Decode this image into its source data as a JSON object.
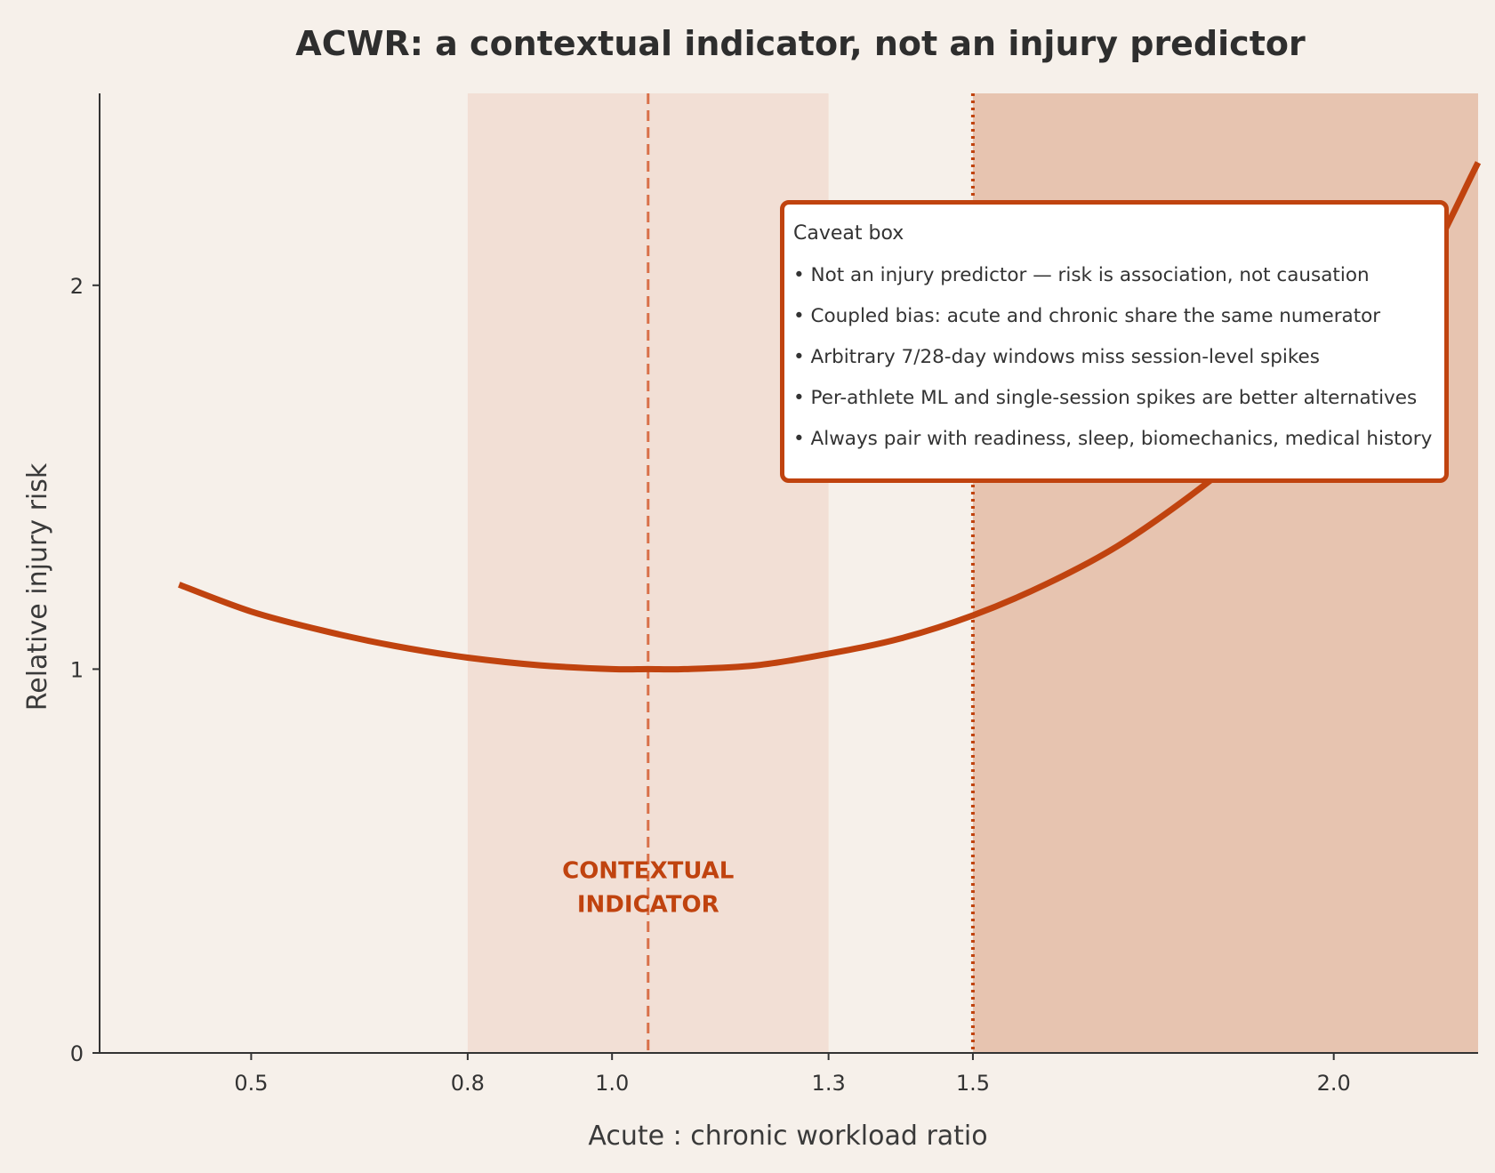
{
  "chart_data": {
    "type": "line",
    "title": "ACWR: a contextual indicator, not an injury predictor",
    "xlabel": "Acute : chronic workload ratio",
    "ylabel": "Relative injury risk",
    "xlim": [
      0.29,
      2.2
    ],
    "ylim": [
      0,
      2.5
    ],
    "xticks": [
      0.5,
      0.8,
      1.0,
      1.3,
      1.5,
      2.0
    ],
    "xtick_labels": [
      "0.5",
      "0.8",
      "1.0",
      "1.3",
      "1.5",
      "2.0"
    ],
    "yticks": [
      0,
      1,
      2
    ],
    "ytick_labels": [
      "0",
      "1",
      "2"
    ],
    "series": [
      {
        "x": [
          0.4,
          0.5,
          0.6,
          0.7,
          0.8,
          0.9,
          1.0,
          1.05,
          1.1,
          1.2,
          1.3,
          1.4,
          1.5,
          1.6,
          1.7,
          1.8,
          1.9,
          2.0,
          2.1,
          2.2
        ],
        "y": [
          1.22,
          1.15,
          1.1,
          1.06,
          1.03,
          1.01,
          1.0,
          1.0,
          1.0,
          1.01,
          1.04,
          1.08,
          1.14,
          1.22,
          1.32,
          1.45,
          1.6,
          1.77,
          1.96,
          2.32
        ]
      }
    ],
    "shaded_bands": [
      {
        "x_start": 0.8,
        "x_end": 1.3,
        "color": "#f2dfd5"
      },
      {
        "x_start": 1.5,
        "x_end": 2.2,
        "color": "#e7c4b0"
      }
    ],
    "reference_lines": [
      {
        "x": 1.05,
        "style": "dashed",
        "color": "#d9714a"
      },
      {
        "x": 1.5,
        "style": "dotted",
        "color": "#c0430f"
      }
    ],
    "annotation": {
      "lines": [
        "CONTEXTUAL",
        "INDICATOR"
      ],
      "x": 1.05,
      "y": 0.42,
      "color": "#c0430f"
    },
    "line_color": "#c0430f",
    "grid": false
  },
  "caveat_box": {
    "title": "Caveat box",
    "items": [
      "• Not an injury predictor — risk is association, not causation",
      "• Coupled bias: acute and chronic share the same numerator",
      "• Arbitrary 7/28-day windows miss session-level spikes",
      "• Per-athlete ML and single-session spikes are better alternatives",
      "• Always pair with readiness, sleep, biomechanics, medical history"
    ],
    "border_color": "#c0430f"
  }
}
